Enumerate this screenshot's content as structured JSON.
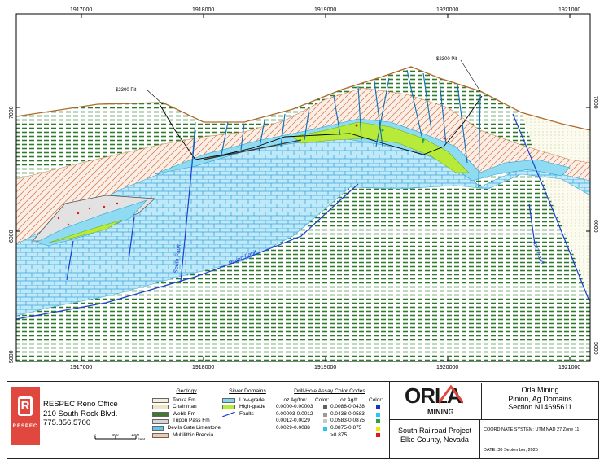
{
  "section": {
    "easting_ticks": [
      "1917000",
      "1918000",
      "1919000",
      "1920000",
      "1921000"
    ],
    "elevation_ticks": [
      "7000",
      "6000",
      "5000"
    ],
    "pit_labels": [
      "$2300 Pit",
      "$2300 Pit"
    ],
    "fault_labels": [
      "South Fault",
      "Pinion Fault",
      "Toto Fault"
    ]
  },
  "legend": {
    "office": {
      "name": "RESPEC Reno Office",
      "address": "210 South Rock Blvd.",
      "phone": "775.856.5700"
    },
    "logo_text": "RESPEC",
    "scale": {
      "ticks": [
        "0",
        "500",
        "1000"
      ],
      "unit": "Feet"
    },
    "geology": {
      "title": "Geology",
      "items": [
        {
          "label": "Tonka Fm",
          "color": "#f4f0d8"
        },
        {
          "label": "Chainman",
          "color": "#efe6c8"
        },
        {
          "label": "Webb Fm",
          "color": "#3c7a32"
        },
        {
          "label": "Tripon Pass Fm",
          "color": "#d6d6d6"
        },
        {
          "label": "Devils Gate Limestone",
          "color": "#60c8ee"
        },
        {
          "label": "Multilithic Breccia",
          "color": "#f6c8a8"
        }
      ]
    },
    "silver": {
      "title": "Silver Domains",
      "items": [
        {
          "label": "Low-grade",
          "color": "#7fd8f0"
        },
        {
          "label": "High-grade",
          "color": "#b8ea3a"
        },
        {
          "label": "Faults",
          "color": "#1a3fd0"
        }
      ]
    },
    "assay": {
      "title": "Drill-Hole Assay Color Codes",
      "h1": "oz Ag/ton:",
      "h2": "Color:",
      "h3": "oz Ag/t:",
      "h4": "Color:",
      "left": [
        {
          "range": "0.0000-0.00003",
          "color": "#606060"
        },
        {
          "range": "0.00003-0.0012",
          "color": "#9a9a9a"
        },
        {
          "range": "0.0012-0.0029",
          "color": "#c8c8c8"
        },
        {
          "range": "0.0029-0.0088",
          "color": "#e6e6e6"
        }
      ],
      "right": [
        {
          "range": "0.0088-0.0438",
          "color": "#1433c8"
        },
        {
          "range": "0.0438-0.0583",
          "color": "#2ac6f2"
        },
        {
          "range": "0.0583-0.0875",
          "color": "#22a83a"
        },
        {
          "range": "0.0875-0.875",
          "color": "#f2e600"
        },
        {
          "range": ">0.875",
          "color": "#e01a1a"
        }
      ]
    },
    "title": {
      "brand": "ORLA",
      "brand_sub": "MINING",
      "company": "Orla Mining",
      "subtitle": "Pinion, Ag Domains",
      "section_name": "Section N14695611",
      "project": "South Railroad Project",
      "county": "Elko County, Nevada",
      "coord": "COORDINATE SYSTEM: UTM NAD 27 Zone 11",
      "date": "DATE: 30 September, 2025"
    }
  }
}
